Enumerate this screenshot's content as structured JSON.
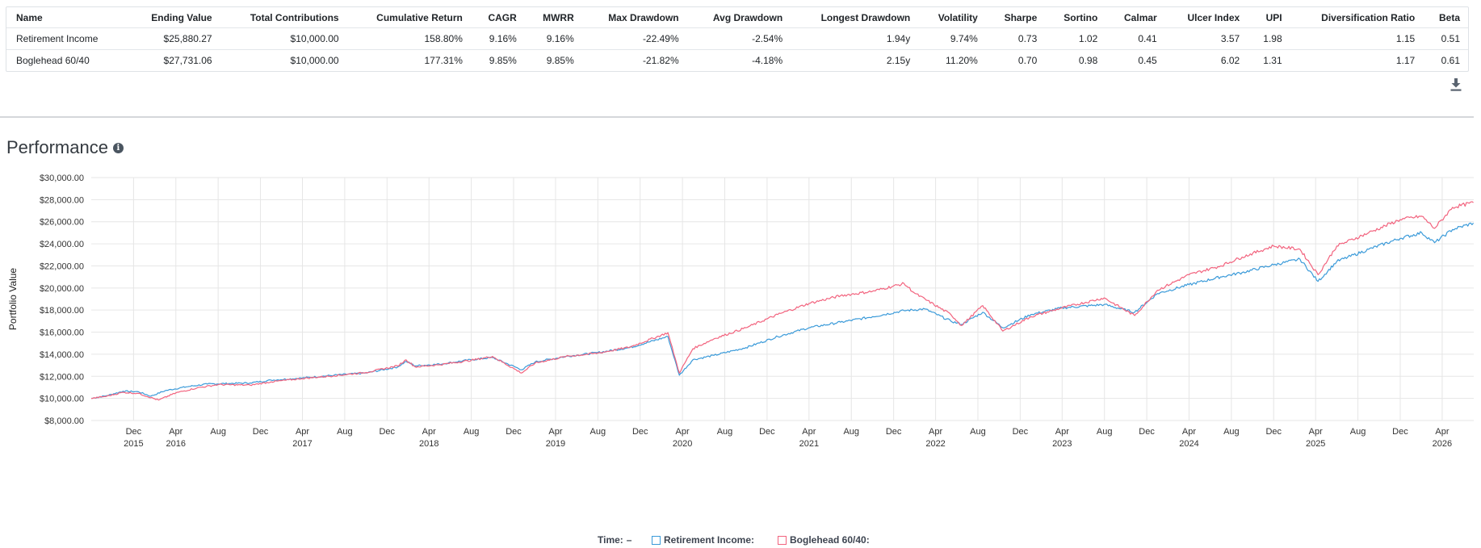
{
  "table": {
    "headers": [
      "Name",
      "Ending Value",
      "Total Contributions",
      "Cumulative Return",
      "CAGR",
      "MWRR",
      "Max Drawdown",
      "Avg Drawdown",
      "Longest Drawdown",
      "Volatility",
      "Sharpe",
      "Sortino",
      "Calmar",
      "Ulcer Index",
      "UPI",
      "Diversification Ratio",
      "Beta"
    ],
    "rows": [
      [
        "Retirement Income",
        "$25,880.27",
        "$10,000.00",
        "158.80%",
        "9.16%",
        "9.16%",
        "-22.49%",
        "-2.54%",
        "1.94y",
        "9.74%",
        "0.73",
        "1.02",
        "0.41",
        "3.57",
        "1.98",
        "1.15",
        "0.51"
      ],
      [
        "Boglehead 60/40",
        "$27,731.06",
        "$10,000.00",
        "177.31%",
        "9.85%",
        "9.85%",
        "-21.82%",
        "-4.18%",
        "2.15y",
        "11.20%",
        "0.70",
        "0.98",
        "0.45",
        "6.02",
        "1.31",
        "1.17",
        "0.61"
      ]
    ],
    "download_icon": "download-icon"
  },
  "performance": {
    "title": "Performance",
    "info_icon": "i"
  },
  "chart_data": {
    "type": "line",
    "ylabel": "Portfolio Value",
    "ylim": [
      8000,
      30000
    ],
    "yticks": [
      "$8,000.00",
      "$10,000.00",
      "$12,000.00",
      "$14,000.00",
      "$16,000.00",
      "$18,000.00",
      "$20,000.00",
      "$22,000.00",
      "$24,000.00",
      "$26,000.00",
      "$28,000.00",
      "$30,000.00"
    ],
    "ytick_values": [
      8000,
      10000,
      12000,
      14000,
      16000,
      18000,
      20000,
      22000,
      24000,
      26000,
      28000,
      30000
    ],
    "xlim": [
      "2015-08-01",
      "2026-07-01"
    ],
    "xticks": [
      {
        "date": "2015-12-01",
        "label": "Dec",
        "year": "2015"
      },
      {
        "date": "2016-04-01",
        "label": "Apr",
        "year": "2016"
      },
      {
        "date": "2016-08-01",
        "label": "Aug",
        "year": ""
      },
      {
        "date": "2016-12-01",
        "label": "Dec",
        "year": ""
      },
      {
        "date": "2017-04-01",
        "label": "Apr",
        "year": "2017"
      },
      {
        "date": "2017-08-01",
        "label": "Aug",
        "year": ""
      },
      {
        "date": "2017-12-01",
        "label": "Dec",
        "year": ""
      },
      {
        "date": "2018-04-01",
        "label": "Apr",
        "year": "2018"
      },
      {
        "date": "2018-08-01",
        "label": "Aug",
        "year": ""
      },
      {
        "date": "2018-12-01",
        "label": "Dec",
        "year": ""
      },
      {
        "date": "2019-04-01",
        "label": "Apr",
        "year": "2019"
      },
      {
        "date": "2019-08-01",
        "label": "Aug",
        "year": ""
      },
      {
        "date": "2019-12-01",
        "label": "Dec",
        "year": ""
      },
      {
        "date": "2020-04-01",
        "label": "Apr",
        "year": "2020"
      },
      {
        "date": "2020-08-01",
        "label": "Aug",
        "year": ""
      },
      {
        "date": "2020-12-01",
        "label": "Dec",
        "year": ""
      },
      {
        "date": "2021-04-01",
        "label": "Apr",
        "year": "2021"
      },
      {
        "date": "2021-08-01",
        "label": "Aug",
        "year": ""
      },
      {
        "date": "2021-12-01",
        "label": "Dec",
        "year": ""
      },
      {
        "date": "2022-04-01",
        "label": "Apr",
        "year": "2022"
      },
      {
        "date": "2022-08-01",
        "label": "Aug",
        "year": ""
      },
      {
        "date": "2022-12-01",
        "label": "Dec",
        "year": ""
      },
      {
        "date": "2023-04-01",
        "label": "Apr",
        "year": "2023"
      },
      {
        "date": "2023-08-01",
        "label": "Aug",
        "year": ""
      },
      {
        "date": "2023-12-01",
        "label": "Dec",
        "year": ""
      },
      {
        "date": "2024-04-01",
        "label": "Apr",
        "year": "2024"
      },
      {
        "date": "2024-08-01",
        "label": "Aug",
        "year": ""
      },
      {
        "date": "2024-12-01",
        "label": "Dec",
        "year": ""
      },
      {
        "date": "2025-04-01",
        "label": "Apr",
        "year": "2025"
      },
      {
        "date": "2025-08-01",
        "label": "Aug",
        "year": ""
      },
      {
        "date": "2025-12-01",
        "label": "Dec",
        "year": ""
      },
      {
        "date": "2026-04-01",
        "label": "Apr",
        "year": "2026"
      }
    ],
    "grid": true,
    "legend_placement": "bottom-center",
    "series": [
      {
        "name": "Retirement Income",
        "color": "#3a9ad9",
        "points": [
          [
            "2015-08-01",
            10000
          ],
          [
            "2015-09-15",
            10250
          ],
          [
            "2015-11-01",
            10650
          ],
          [
            "2015-12-15",
            10600
          ],
          [
            "2016-01-20",
            10200
          ],
          [
            "2016-03-01",
            10700
          ],
          [
            "2016-05-01",
            11050
          ],
          [
            "2016-07-01",
            11300
          ],
          [
            "2016-09-01",
            11350
          ],
          [
            "2016-11-01",
            11400
          ],
          [
            "2017-01-01",
            11650
          ],
          [
            "2017-04-01",
            11850
          ],
          [
            "2017-07-01",
            12100
          ],
          [
            "2017-10-01",
            12300
          ],
          [
            "2018-01-01",
            12850
          ],
          [
            "2018-01-25",
            13350
          ],
          [
            "2018-02-20",
            12950
          ],
          [
            "2018-05-01",
            13100
          ],
          [
            "2018-08-01",
            13500
          ],
          [
            "2018-10-01",
            13700
          ],
          [
            "2018-12-24",
            12600
          ],
          [
            "2019-02-01",
            13300
          ],
          [
            "2019-05-01",
            13800
          ],
          [
            "2019-08-01",
            14150
          ],
          [
            "2019-11-01",
            14600
          ],
          [
            "2020-02-19",
            15600
          ],
          [
            "2020-03-23",
            12100
          ],
          [
            "2020-05-01",
            13500
          ],
          [
            "2020-07-01",
            13900
          ],
          [
            "2020-10-01",
            14600
          ],
          [
            "2021-01-01",
            15600
          ],
          [
            "2021-04-01",
            16400
          ],
          [
            "2021-07-01",
            16900
          ],
          [
            "2021-10-01",
            17400
          ],
          [
            "2021-12-31",
            17950
          ],
          [
            "2022-03-01",
            18100
          ],
          [
            "2022-05-15",
            17000
          ],
          [
            "2022-06-15",
            16700
          ],
          [
            "2022-08-15",
            17800
          ],
          [
            "2022-10-12",
            16400
          ],
          [
            "2023-01-01",
            17600
          ],
          [
            "2023-04-01",
            18200
          ],
          [
            "2023-07-31",
            18500
          ],
          [
            "2023-10-27",
            17800
          ],
          [
            "2024-01-01",
            19500
          ],
          [
            "2024-04-01",
            20300
          ],
          [
            "2024-07-01",
            21000
          ],
          [
            "2024-09-01",
            21400
          ],
          [
            "2024-12-01",
            22100
          ],
          [
            "2025-02-15",
            22600
          ],
          [
            "2025-04-08",
            20600
          ],
          [
            "2025-06-01",
            22400
          ],
          [
            "2025-09-01",
            23500
          ],
          [
            "2025-12-01",
            24500
          ],
          [
            "2026-02-01",
            25000
          ],
          [
            "2026-03-10",
            24100
          ],
          [
            "2026-05-01",
            25300
          ],
          [
            "2026-06-30",
            25880
          ]
        ]
      },
      {
        "name": "Boglehead 60/40",
        "color": "#f2637e",
        "points": [
          [
            "2015-08-01",
            10000
          ],
          [
            "2015-09-15",
            10200
          ],
          [
            "2015-11-01",
            10550
          ],
          [
            "2015-12-15",
            10450
          ],
          [
            "2016-02-11",
            9850
          ],
          [
            "2016-04-01",
            10500
          ],
          [
            "2016-06-01",
            10950
          ],
          [
            "2016-08-01",
            11250
          ],
          [
            "2016-11-01",
            11200
          ],
          [
            "2017-01-01",
            11500
          ],
          [
            "2017-04-01",
            11800
          ],
          [
            "2017-07-01",
            12050
          ],
          [
            "2017-10-01",
            12350
          ],
          [
            "2018-01-01",
            12950
          ],
          [
            "2018-01-25",
            13500
          ],
          [
            "2018-02-20",
            12850
          ],
          [
            "2018-05-01",
            13050
          ],
          [
            "2018-08-01",
            13450
          ],
          [
            "2018-10-01",
            13800
          ],
          [
            "2018-12-24",
            12300
          ],
          [
            "2019-02-01",
            13200
          ],
          [
            "2019-05-01",
            13800
          ],
          [
            "2019-08-01",
            14100
          ],
          [
            "2019-11-01",
            14650
          ],
          [
            "2020-02-19",
            15950
          ],
          [
            "2020-03-23",
            12300
          ],
          [
            "2020-05-01",
            14500
          ],
          [
            "2020-07-01",
            15400
          ],
          [
            "2020-10-01",
            16400
          ],
          [
            "2021-01-01",
            17600
          ],
          [
            "2021-04-01",
            18600
          ],
          [
            "2021-07-01",
            19300
          ],
          [
            "2021-10-01",
            19700
          ],
          [
            "2021-12-31",
            20400
          ],
          [
            "2022-02-01",
            19500
          ],
          [
            "2022-05-15",
            17600
          ],
          [
            "2022-06-15",
            16600
          ],
          [
            "2022-08-15",
            18400
          ],
          [
            "2022-10-12",
            16100
          ],
          [
            "2023-01-01",
            17400
          ],
          [
            "2023-04-01",
            18200
          ],
          [
            "2023-07-31",
            19100
          ],
          [
            "2023-10-27",
            17500
          ],
          [
            "2024-01-01",
            19800
          ],
          [
            "2024-04-01",
            21200
          ],
          [
            "2024-07-01",
            22000
          ],
          [
            "2024-09-01",
            22800
          ],
          [
            "2024-12-01",
            23800
          ],
          [
            "2025-02-15",
            23500
          ],
          [
            "2025-04-08",
            21200
          ],
          [
            "2025-06-01",
            23800
          ],
          [
            "2025-09-01",
            25000
          ],
          [
            "2025-12-01",
            26200
          ],
          [
            "2026-02-01",
            26500
          ],
          [
            "2026-03-10",
            25400
          ],
          [
            "2026-05-01",
            27300
          ],
          [
            "2026-06-30",
            27731
          ]
        ]
      }
    ]
  },
  "legend": {
    "time_label": "Time:",
    "time_value": "–",
    "series": [
      {
        "label": "Retirement Income:",
        "color": "#3a9ad9"
      },
      {
        "label": "Boglehead 60/40:",
        "color": "#f2637e"
      }
    ]
  }
}
